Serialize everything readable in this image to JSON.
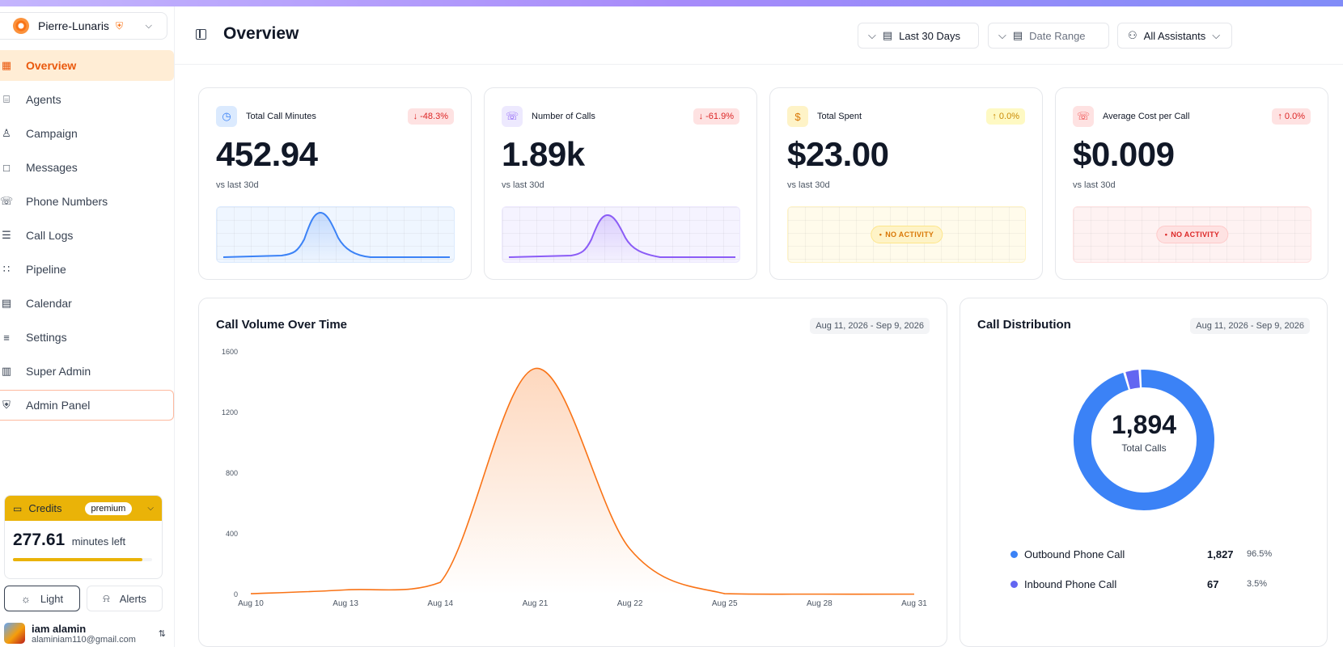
{
  "app": {
    "org_name": "Pierre-Lunaris",
    "page_title": "Overview",
    "accent": "#f97316"
  },
  "sidebar": {
    "items": [
      {
        "label": "Overview",
        "icon": "grid-icon"
      },
      {
        "label": "Agents",
        "icon": "bot-icon"
      },
      {
        "label": "Campaign",
        "icon": "user-plus-icon"
      },
      {
        "label": "Messages",
        "icon": "message-icon"
      },
      {
        "label": "Phone Numbers",
        "icon": "phone-icon"
      },
      {
        "label": "Call Logs",
        "icon": "list-icon"
      },
      {
        "label": "Pipeline",
        "icon": "workflow-icon"
      },
      {
        "label": "Calendar",
        "icon": "calendar-icon"
      },
      {
        "label": "Settings",
        "icon": "sliders-icon"
      },
      {
        "label": "Super Admin",
        "icon": "building-icon"
      },
      {
        "label": "Admin Panel",
        "icon": "shield-icon"
      }
    ],
    "credits": {
      "label": "Credits",
      "tier": "premium",
      "value": "277.61",
      "unit": "minutes left",
      "fill_fraction": 0.93,
      "color": "#eab308"
    },
    "theme_button": "Light",
    "alerts_button": "Alerts",
    "user": {
      "name": "iam alamin",
      "email": "alaminiam110@gmail.com"
    }
  },
  "header": {
    "period_select": "Last 30 Days",
    "date_range_placeholder": "Date Range",
    "assistants_select": "All Assistants"
  },
  "stats": [
    {
      "label": "Total Call Minutes",
      "value": "452.94",
      "change": "↓ -48.3%",
      "sub": "vs last 30d",
      "color": "#3b82f6",
      "icon": "clock-icon"
    },
    {
      "label": "Number of Calls",
      "value": "1.89k",
      "change": "↓ -61.9%",
      "sub": "vs last 30d",
      "color": "#8b5cf6",
      "icon": "phone-icon"
    },
    {
      "label": "Total Spent",
      "value": "$23.00",
      "change": "↑ 0.0%",
      "sub": "vs last 30d",
      "color": "#d97706",
      "icon": "dollar-icon",
      "empty_label": "NO ACTIVITY"
    },
    {
      "label": "Average Cost per Call",
      "value": "$0.009",
      "change": "↑ 0.0%",
      "sub": "vs last 30d",
      "color": "#ef4444",
      "icon": "phone-icon",
      "empty_label": "NO ACTIVITY"
    }
  ],
  "volume_panel": {
    "title": "Call Volume Over Time",
    "range": "Aug 11, 2026 - Sep 9, 2026"
  },
  "distribution_panel": {
    "title": "Call Distribution",
    "range": "Aug 11, 2026 - Sep 9, 2026",
    "total": "1,894",
    "total_label": "Total Calls",
    "legend": [
      {
        "name": "Outbound Phone Call",
        "count": "1,827",
        "pct": "96.5%",
        "color": "#3b82f6"
      },
      {
        "name": "Inbound Phone Call",
        "count": "67",
        "pct": "3.5%",
        "color": "#6366f1"
      }
    ]
  },
  "chart_data": [
    {
      "type": "area",
      "title": "Call Volume Over Time",
      "x": [
        "Aug 10",
        "Aug 13",
        "Aug 14",
        "Aug 21",
        "Aug 22",
        "Aug 25",
        "Aug 28",
        "Aug 31"
      ],
      "y_ticks": [
        "0",
        "400",
        "800",
        "1200",
        "1600"
      ],
      "ylim": [
        0,
        1600
      ],
      "series": [
        {
          "values": [
            5,
            30,
            80,
            1490,
            300,
            5,
            2,
            2
          ],
          "color": "#f97316"
        }
      ],
      "grid": false
    },
    {
      "type": "pie",
      "title": "Call Distribution",
      "labels": [
        "Outbound Phone Call",
        "Inbound Phone Call"
      ],
      "values": [
        1827,
        67
      ],
      "colors": [
        "#3b82f6",
        "#6366f1"
      ]
    }
  ]
}
